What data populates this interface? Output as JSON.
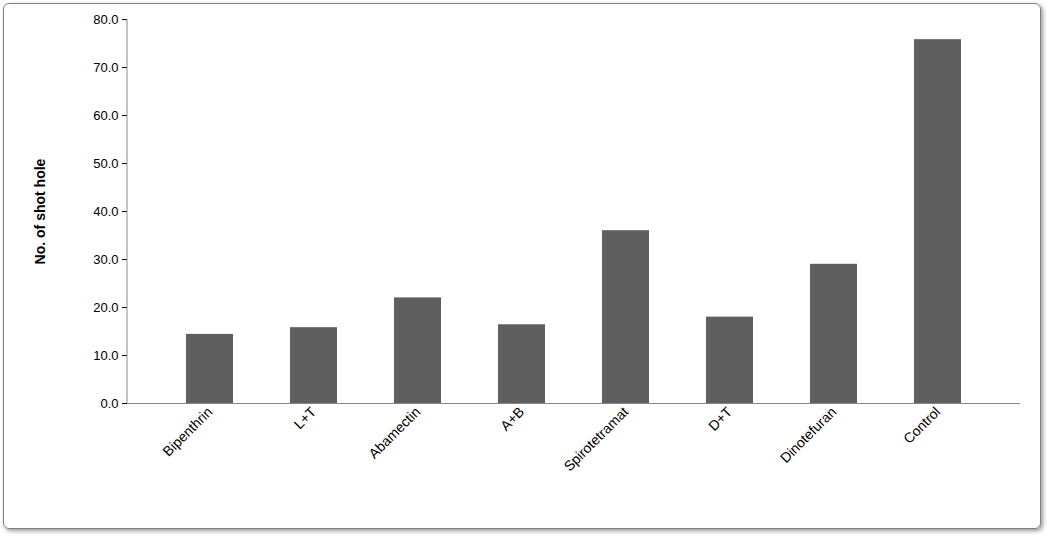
{
  "chart_data": {
    "type": "bar",
    "y_label": "No. of shot hole",
    "categories": [
      "Bipenthrin",
      "L+T",
      "Abamectin",
      "A+B",
      "Spirotetramat",
      "D+T",
      "Dinotefuran",
      "Control"
    ],
    "values": [
      14.4,
      15.8,
      22.0,
      16.4,
      36.0,
      18.0,
      29.0,
      75.8
    ],
    "color": "#5f5f5f",
    "ylim": [
      0,
      80
    ],
    "yticks": [
      {
        "value": 0,
        "label": "0.0"
      },
      {
        "value": 10,
        "label": "10.0"
      },
      {
        "value": 20,
        "label": "20.0"
      },
      {
        "value": 30,
        "label": "30.0"
      },
      {
        "value": 40,
        "label": "40.0"
      },
      {
        "value": 50,
        "label": "50.0"
      },
      {
        "value": 60,
        "label": "60.0"
      },
      {
        "value": 70,
        "label": "70.0"
      },
      {
        "value": 80,
        "label": "80.0"
      }
    ],
    "grid": false
  }
}
